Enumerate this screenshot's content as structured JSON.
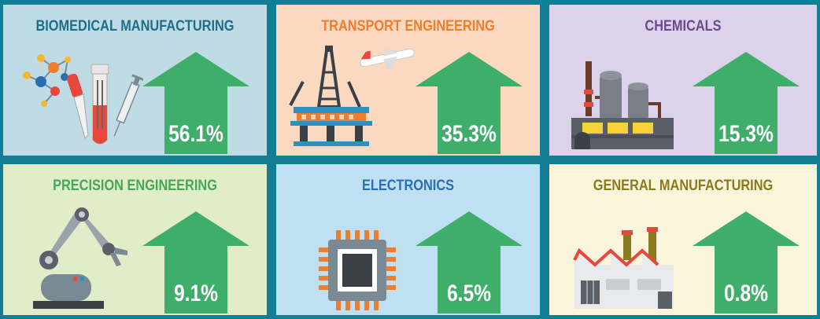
{
  "colors": {
    "background": "#117e96",
    "arrow": "#3fae6a"
  },
  "panels": [
    {
      "title": "BIOMEDICAL MANUFACTURING",
      "value": "56.1%",
      "bg": "#bfdce5",
      "title_color": "#1d6e8a",
      "icon": "lab-equipment-icon"
    },
    {
      "title": "TRANSPORT ENGINEERING",
      "value": "35.3%",
      "bg": "#fbd9c0",
      "title_color": "#ef7d2e",
      "icon": "oil-rig-and-airplane-icon"
    },
    {
      "title": "CHEMICALS",
      "value": "15.3%",
      "bg": "#dcd3ea",
      "title_color": "#6b4a8f",
      "icon": "chemical-plant-icon"
    },
    {
      "title": "PRECISION ENGINEERING",
      "value": "9.1%",
      "bg": "#e1ecc9",
      "title_color": "#46a758",
      "icon": "robotic-arm-icon"
    },
    {
      "title": "ELECTRONICS",
      "value": "6.5%",
      "bg": "#bfe0f3",
      "title_color": "#2a6fb3",
      "icon": "microchip-icon"
    },
    {
      "title": "GENERAL MANUFACTURING",
      "value": "0.8%",
      "bg": "#fbf5dc",
      "title_color": "#8a7a1e",
      "icon": "factory-icon"
    }
  ]
}
